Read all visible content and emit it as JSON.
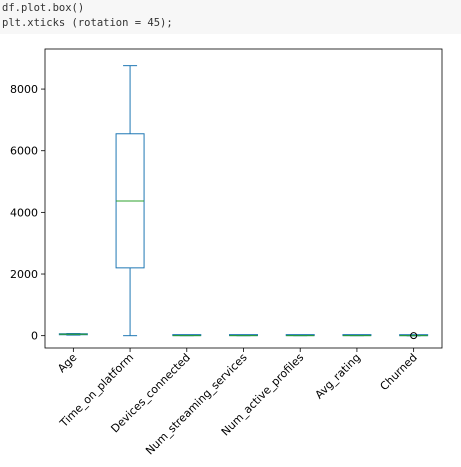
{
  "code_cell": {
    "lines": [
      "df.plot.box()",
      "plt.xticks (rotation = 45);"
    ]
  },
  "colors": {
    "box": "#1f77b4",
    "median": "#2ca02c",
    "axis": "#000000",
    "code_bg": "#f7f7f7"
  },
  "chart_data": {
    "type": "box",
    "title": "",
    "xlabel": "",
    "ylabel": "",
    "ylim": [
      -400,
      9300
    ],
    "yticks": [
      0,
      2000,
      4000,
      6000,
      8000
    ],
    "xtick_rotation": 45,
    "categories": [
      "Age",
      "Time_on_platform",
      "Devices_connected",
      "Num_streaming_services",
      "Num_active_profiles",
      "Avg_rating",
      "Churned"
    ],
    "boxes": [
      {
        "whisker_low": 18,
        "q1": 30,
        "median": 45,
        "q3": 58,
        "whisker_high": 70,
        "fliers": []
      },
      {
        "whisker_low": 0,
        "q1": 2200,
        "median": 4370,
        "q3": 6550,
        "whisker_high": 8760,
        "fliers": []
      },
      {
        "whisker_low": 1,
        "q1": 2,
        "median": 3,
        "q3": 4,
        "whisker_high": 5,
        "fliers": []
      },
      {
        "whisker_low": 1,
        "q1": 2,
        "median": 2,
        "q3": 3,
        "whisker_high": 4,
        "fliers": []
      },
      {
        "whisker_low": 1,
        "q1": 2,
        "median": 3,
        "q3": 4,
        "whisker_high": 5,
        "fliers": []
      },
      {
        "whisker_low": 1,
        "q1": 2,
        "median": 3,
        "q3": 4,
        "whisker_high": 5,
        "fliers": []
      },
      {
        "whisker_low": 0,
        "q1": 0,
        "median": 0,
        "q3": 0,
        "whisker_high": 0,
        "fliers": [
          1
        ]
      }
    ]
  }
}
